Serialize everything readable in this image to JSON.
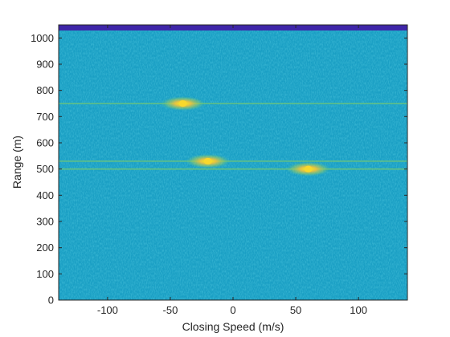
{
  "chart_data": {
    "type": "heatmap",
    "title": "",
    "xlabel": "Closing Speed (m/s)",
    "ylabel": "Range (m)",
    "xlim": [
      -139,
      139
    ],
    "ylim": [
      0,
      1050
    ],
    "xticks": [
      -100,
      -50,
      0,
      50,
      100
    ],
    "yticks": [
      0,
      100,
      200,
      300,
      400,
      500,
      600,
      700,
      800,
      900,
      1000
    ],
    "grid": false,
    "colormap": "parula",
    "colors": {
      "background": "#1a9fc4",
      "top_band": "#3e26a8",
      "ridge": "#6cc57a",
      "target_core": "#f9d82c"
    },
    "targets": [
      {
        "speed": -40,
        "range": 750
      },
      {
        "speed": -20,
        "range": 530
      },
      {
        "speed": 60,
        "range": 500
      }
    ],
    "range_ridges": [
      750,
      530,
      500
    ]
  }
}
